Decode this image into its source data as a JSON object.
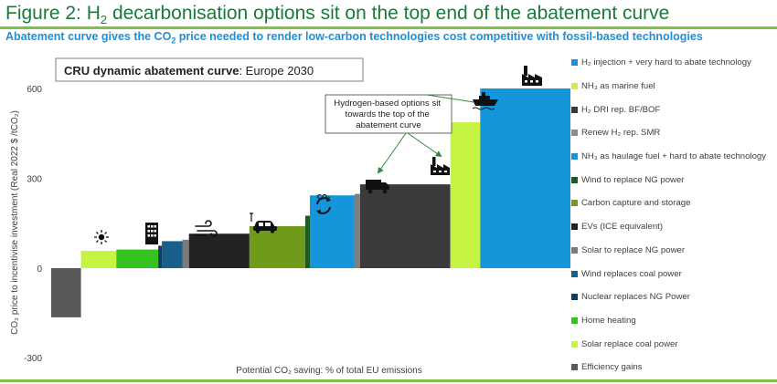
{
  "page": {
    "title_pre": "Figure 2: H",
    "title_sub": "2",
    "title_post": " decarbonisation options sit on the top end of the abatement curve",
    "subtitle_pre": "Abatement curve gives the CO",
    "subtitle_sub": "2",
    "subtitle_post": " price needed to render low-carbon technologies cost competitive with fossil-based technologies"
  },
  "chart_data": {
    "type": "bar",
    "title_bold": "CRU dynamic abatement curve",
    "title_rest": ": Europe 2030",
    "xlabel": "Potential CO₂ saving:  % of total EU emissions",
    "ylabel": "CO₂ price to incentivise investment (Real 2022 $ /tCO₂)",
    "ylim": [
      -300,
      600
    ],
    "yticks": [
      -300,
      0,
      300,
      600
    ],
    "annotation": [
      "Hydrogen-based options sit",
      "towards the top of the",
      "abatement curve"
    ],
    "co2_label": "CO₂",
    "bars": [
      {
        "name": "Efficiency gains",
        "value": -165,
        "width": 3.2,
        "color": "#595959"
      },
      {
        "name": "Solar replace coal power",
        "value": 58,
        "width": 3.8,
        "color": "#c5f542"
      },
      {
        "name": "Home heating",
        "value": 62,
        "width": 4.5,
        "color": "#34c21e"
      },
      {
        "name": "Nuclear replaces NG Power",
        "value": 75,
        "width": 0.4,
        "color": "#123c5e"
      },
      {
        "name": "Wind replaces coal power",
        "value": 90,
        "width": 2.2,
        "color": "#185f8a"
      },
      {
        "name": "Solar to replace NG power",
        "value": 95,
        "width": 0.7,
        "color": "#7b7b7b"
      },
      {
        "name": "EVs (ICE equivalent)",
        "value": 115,
        "width": 6.5,
        "color": "#222222"
      },
      {
        "name": "Carbon capture and storage",
        "value": 140,
        "width": 6.0,
        "color": "#6f9a1a"
      },
      {
        "name": "Wind to replace NG power",
        "value": 175,
        "width": 0.5,
        "color": "#1a5c24"
      },
      {
        "name": "NH₃ as haulage fuel + hard to abate technology",
        "value": 243,
        "width": 4.8,
        "color": "#1596db"
      },
      {
        "name": "Renew H₂ rep. SMR",
        "value": 248,
        "width": 0.6,
        "color": "#7f7f7f"
      },
      {
        "name": "H₂ DRI rep. BF/BOF",
        "value": 280,
        "width": 9.7,
        "color": "#3a3a3a"
      },
      {
        "name": "NH₃ as marine fuel",
        "value": 487,
        "width": 3.2,
        "color": "#c5f542"
      },
      {
        "name": "H₂ injection + very hard to abate technology",
        "value": 600,
        "width": 9.7,
        "color": "#1596db"
      }
    ],
    "legend": [
      {
        "label": "H₂ injection + very hard to abate technology",
        "color": "#1596db"
      },
      {
        "label": "NH₃ as marine fuel",
        "color": "#c5f542"
      },
      {
        "label": "H₂ DRI rep. BF/BOF",
        "color": "#3a3a3a"
      },
      {
        "label": "Renew H₂ rep. SMR",
        "color": "#8c8c8c"
      },
      {
        "label": "NH₃ as haulage fuel + hard to abate technology",
        "color": "#1596db"
      },
      {
        "label": "Wind to replace NG power",
        "color": "#1a5c24"
      },
      {
        "label": "Carbon capture and storage",
        "color": "#6f9a1a"
      },
      {
        "label": "EVs (ICE equivalent)",
        "color": "#222222"
      },
      {
        "label": "Solar to replace NG power",
        "color": "#7b7b7b"
      },
      {
        "label": "Wind replaces coal power",
        "color": "#185f8a"
      },
      {
        "label": "Nuclear replaces NG Power",
        "color": "#123c5e"
      },
      {
        "label": "Home heating",
        "color": "#34c21e"
      },
      {
        "label": "Solar replace coal power",
        "color": "#c5f542"
      },
      {
        "label": "Efficiency gains",
        "color": "#595959"
      }
    ]
  }
}
